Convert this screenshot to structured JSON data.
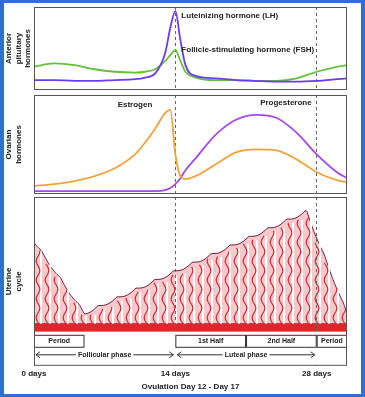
{
  "chart_data": [
    {
      "type": "line",
      "ylabel": [
        "Anterior",
        "pituitary",
        "hormones"
      ],
      "x": [
        0,
        2,
        4,
        6,
        8,
        10,
        11,
        12,
        13,
        13.5,
        14,
        14.5,
        15,
        16,
        18,
        20,
        22,
        24,
        26,
        28,
        30,
        31
      ],
      "series": [
        {
          "name": "Luteinizing hormone (LH)",
          "color": "#6a3df0",
          "values": [
            12,
            12,
            11,
            11,
            12,
            13,
            15,
            20,
            45,
            75,
            95,
            60,
            30,
            17,
            14,
            12,
            11,
            10,
            10,
            11,
            13,
            14
          ]
        },
        {
          "name": "Follicle-stimulating hormone (FSH)",
          "color": "#62c23c",
          "values": [
            28,
            32,
            30,
            25,
            22,
            21,
            22,
            25,
            35,
            42,
            48,
            35,
            22,
            15,
            12,
            12,
            11,
            11,
            14,
            22,
            28,
            30
          ]
        }
      ],
      "xlim": [
        0,
        31
      ],
      "xticks": [
        0,
        14,
        28
      ],
      "ylim": [
        0,
        100
      ],
      "grid": true,
      "tick_labels": false
    },
    {
      "type": "line",
      "ylabel": [
        "Ovarian",
        "hormones"
      ],
      "x": [
        0,
        2,
        4,
        6,
        8,
        10,
        11,
        12,
        13,
        13.5,
        14,
        14.5,
        15,
        16,
        18,
        20,
        22,
        24,
        26,
        28,
        30,
        31
      ],
      "series": [
        {
          "name": "Estrogen",
          "color": "#f2a23a",
          "values": [
            8,
            10,
            13,
            18,
            26,
            40,
            52,
            66,
            82,
            85,
            40,
            18,
            15,
            18,
            30,
            42,
            45,
            44,
            35,
            22,
            14,
            12
          ]
        },
        {
          "name": "Progesterone",
          "color": "#a447f0",
          "values": [
            3,
            3,
            3,
            3,
            3,
            3,
            3,
            3,
            4,
            6,
            10,
            16,
            24,
            36,
            60,
            75,
            80,
            77,
            62,
            40,
            22,
            16
          ]
        }
      ],
      "xlim": [
        0,
        31
      ],
      "xticks": [
        0,
        14,
        28
      ],
      "ylim": [
        0,
        100
      ],
      "grid": true,
      "tick_labels": false
    }
  ],
  "uterine_cycle": {
    "ylabel": [
      "Uterine",
      "cycle"
    ],
    "xlabel": "Ovulation Day 12 - Day 17",
    "xlim": [
      0,
      31
    ],
    "xticks": [
      {
        "value": 0,
        "label": "0 days"
      },
      {
        "value": 14,
        "label": "14 days"
      },
      {
        "value": 28,
        "label": "28 days"
      }
    ],
    "grid": true,
    "spans": [
      {
        "label": "Period",
        "start": 0,
        "end": 5
      },
      {
        "label": "1st Half",
        "start": 14,
        "end": 21
      },
      {
        "label": "2nd Half",
        "start": 21,
        "end": 28
      },
      {
        "label": "Period",
        "start": 28,
        "end": 31
      }
    ],
    "phases": [
      {
        "label": "Follicular phase",
        "start": 0,
        "end": 14
      },
      {
        "label": "Luteal phase",
        "start": 14,
        "end": 28
      }
    ]
  }
}
